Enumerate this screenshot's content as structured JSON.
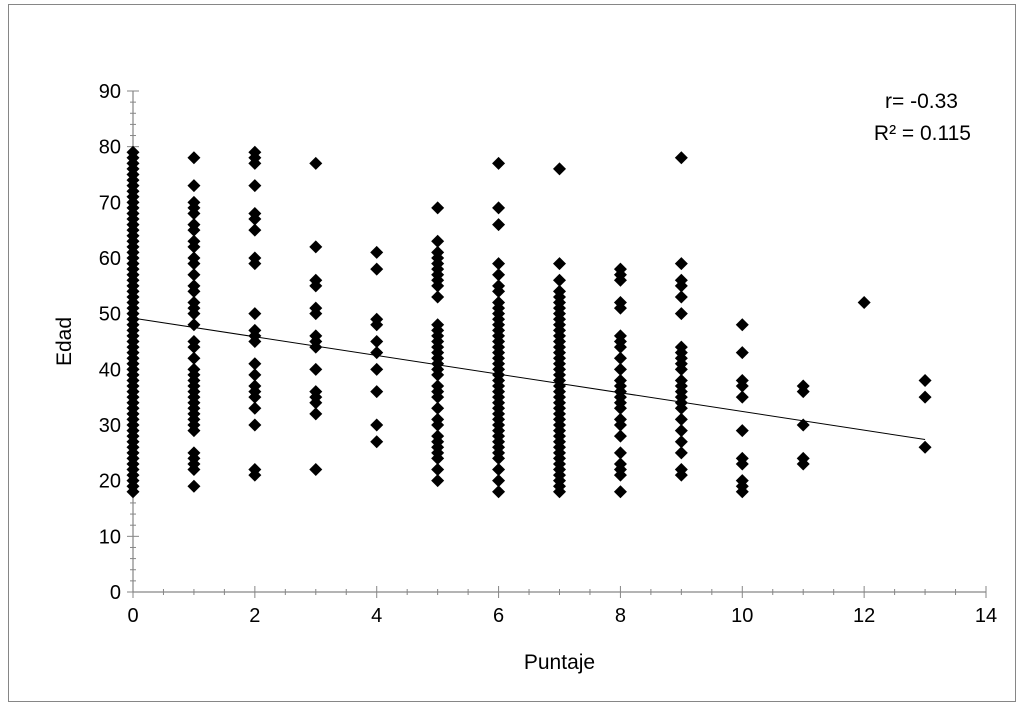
{
  "chart_data": {
    "type": "scatter",
    "title": "",
    "xlabel": "Puntaje",
    "ylabel": "Edad",
    "xlim": [
      0,
      14
    ],
    "ylim": [
      0,
      90
    ],
    "x_ticks": [
      0,
      2,
      4,
      6,
      8,
      10,
      12,
      14
    ],
    "y_ticks": [
      0,
      10,
      20,
      30,
      40,
      50,
      60,
      70,
      80,
      90
    ],
    "grid": false,
    "legend": "none",
    "marker": "diamond",
    "marker_color": "#000000",
    "annotations": [
      "r= -0.33",
      "R² = 0.115"
    ],
    "trendline": {
      "type": "linear",
      "x": [
        0,
        13
      ],
      "y": [
        49.2,
        27.4
      ],
      "color": "#000000"
    },
    "series": [
      {
        "points": [
          [
            0,
            18
          ],
          [
            0,
            19
          ],
          [
            0,
            20
          ],
          [
            0,
            21
          ],
          [
            0,
            22
          ],
          [
            0,
            23
          ],
          [
            0,
            24
          ],
          [
            0,
            25
          ],
          [
            0,
            26
          ],
          [
            0,
            27
          ],
          [
            0,
            28
          ],
          [
            0,
            29
          ],
          [
            0,
            30
          ],
          [
            0,
            31
          ],
          [
            0,
            32
          ],
          [
            0,
            33
          ],
          [
            0,
            34
          ],
          [
            0,
            35
          ],
          [
            0,
            36
          ],
          [
            0,
            37
          ],
          [
            0,
            38
          ],
          [
            0,
            39
          ],
          [
            0,
            40
          ],
          [
            0,
            41
          ],
          [
            0,
            42
          ],
          [
            0,
            43
          ],
          [
            0,
            44
          ],
          [
            0,
            45
          ],
          [
            0,
            46
          ],
          [
            0,
            47
          ],
          [
            0,
            48
          ],
          [
            0,
            49
          ],
          [
            0,
            50
          ],
          [
            0,
            51
          ],
          [
            0,
            52
          ],
          [
            0,
            53
          ],
          [
            0,
            54
          ],
          [
            0,
            55
          ],
          [
            0,
            56
          ],
          [
            0,
            57
          ],
          [
            0,
            58
          ],
          [
            0,
            59
          ],
          [
            0,
            60
          ],
          [
            0,
            61
          ],
          [
            0,
            62
          ],
          [
            0,
            63
          ],
          [
            0,
            64
          ],
          [
            0,
            65
          ],
          [
            0,
            66
          ],
          [
            0,
            67
          ],
          [
            0,
            68
          ],
          [
            0,
            69
          ],
          [
            0,
            70
          ],
          [
            0,
            71
          ],
          [
            0,
            72
          ],
          [
            0,
            73
          ],
          [
            0,
            74
          ],
          [
            0,
            75
          ],
          [
            0,
            76
          ],
          [
            0,
            77
          ],
          [
            0,
            78
          ],
          [
            0,
            79
          ],
          [
            1,
            19
          ],
          [
            1,
            22
          ],
          [
            1,
            23
          ],
          [
            1,
            24
          ],
          [
            1,
            25
          ],
          [
            1,
            29
          ],
          [
            1,
            30
          ],
          [
            1,
            31
          ],
          [
            1,
            32
          ],
          [
            1,
            33
          ],
          [
            1,
            34
          ],
          [
            1,
            35
          ],
          [
            1,
            36
          ],
          [
            1,
            37
          ],
          [
            1,
            38
          ],
          [
            1,
            39
          ],
          [
            1,
            40
          ],
          [
            1,
            42
          ],
          [
            1,
            44
          ],
          [
            1,
            45
          ],
          [
            1,
            48
          ],
          [
            1,
            50
          ],
          [
            1,
            51
          ],
          [
            1,
            52
          ],
          [
            1,
            54
          ],
          [
            1,
            55
          ],
          [
            1,
            57
          ],
          [
            1,
            59
          ],
          [
            1,
            60
          ],
          [
            1,
            62
          ],
          [
            1,
            63
          ],
          [
            1,
            65
          ],
          [
            1,
            66
          ],
          [
            1,
            68
          ],
          [
            1,
            69
          ],
          [
            1,
            70
          ],
          [
            1,
            73
          ],
          [
            1,
            78
          ],
          [
            2,
            21
          ],
          [
            2,
            22
          ],
          [
            2,
            30
          ],
          [
            2,
            33
          ],
          [
            2,
            35
          ],
          [
            2,
            36
          ],
          [
            2,
            37
          ],
          [
            2,
            39
          ],
          [
            2,
            41
          ],
          [
            2,
            45
          ],
          [
            2,
            46
          ],
          [
            2,
            47
          ],
          [
            2,
            50
          ],
          [
            2,
            59
          ],
          [
            2,
            60
          ],
          [
            2,
            65
          ],
          [
            2,
            67
          ],
          [
            2,
            68
          ],
          [
            2,
            73
          ],
          [
            2,
            77
          ],
          [
            2,
            78
          ],
          [
            2,
            79
          ],
          [
            3,
            22
          ],
          [
            3,
            32
          ],
          [
            3,
            34
          ],
          [
            3,
            35
          ],
          [
            3,
            36
          ],
          [
            3,
            40
          ],
          [
            3,
            44
          ],
          [
            3,
            45
          ],
          [
            3,
            46
          ],
          [
            3,
            50
          ],
          [
            3,
            51
          ],
          [
            3,
            55
          ],
          [
            3,
            56
          ],
          [
            3,
            62
          ],
          [
            3,
            77
          ],
          [
            4,
            27
          ],
          [
            4,
            30
          ],
          [
            4,
            36
          ],
          [
            4,
            40
          ],
          [
            4,
            43
          ],
          [
            4,
            45
          ],
          [
            4,
            48
          ],
          [
            4,
            49
          ],
          [
            4,
            58
          ],
          [
            4,
            61
          ],
          [
            5,
            20
          ],
          [
            5,
            22
          ],
          [
            5,
            24
          ],
          [
            5,
            25
          ],
          [
            5,
            26
          ],
          [
            5,
            27
          ],
          [
            5,
            28
          ],
          [
            5,
            30
          ],
          [
            5,
            31
          ],
          [
            5,
            33
          ],
          [
            5,
            35
          ],
          [
            5,
            36
          ],
          [
            5,
            37
          ],
          [
            5,
            39
          ],
          [
            5,
            40
          ],
          [
            5,
            41
          ],
          [
            5,
            42
          ],
          [
            5,
            43
          ],
          [
            5,
            44
          ],
          [
            5,
            45
          ],
          [
            5,
            46
          ],
          [
            5,
            47
          ],
          [
            5,
            48
          ],
          [
            5,
            53
          ],
          [
            5,
            55
          ],
          [
            5,
            56
          ],
          [
            5,
            57
          ],
          [
            5,
            58
          ],
          [
            5,
            59
          ],
          [
            5,
            60
          ],
          [
            5,
            61
          ],
          [
            5,
            63
          ],
          [
            5,
            69
          ],
          [
            6,
            18
          ],
          [
            6,
            20
          ],
          [
            6,
            22
          ],
          [
            6,
            24
          ],
          [
            6,
            25
          ],
          [
            6,
            26
          ],
          [
            6,
            27
          ],
          [
            6,
            28
          ],
          [
            6,
            29
          ],
          [
            6,
            30
          ],
          [
            6,
            31
          ],
          [
            6,
            32
          ],
          [
            6,
            33
          ],
          [
            6,
            34
          ],
          [
            6,
            35
          ],
          [
            6,
            36
          ],
          [
            6,
            37
          ],
          [
            6,
            38
          ],
          [
            6,
            39
          ],
          [
            6,
            40
          ],
          [
            6,
            41
          ],
          [
            6,
            42
          ],
          [
            6,
            43
          ],
          [
            6,
            44
          ],
          [
            6,
            45
          ],
          [
            6,
            46
          ],
          [
            6,
            47
          ],
          [
            6,
            48
          ],
          [
            6,
            49
          ],
          [
            6,
            50
          ],
          [
            6,
            51
          ],
          [
            6,
            52
          ],
          [
            6,
            54
          ],
          [
            6,
            55
          ],
          [
            6,
            57
          ],
          [
            6,
            59
          ],
          [
            6,
            66
          ],
          [
            6,
            69
          ],
          [
            6,
            77
          ],
          [
            7,
            18
          ],
          [
            7,
            19
          ],
          [
            7,
            20
          ],
          [
            7,
            21
          ],
          [
            7,
            22
          ],
          [
            7,
            23
          ],
          [
            7,
            24
          ],
          [
            7,
            25
          ],
          [
            7,
            26
          ],
          [
            7,
            27
          ],
          [
            7,
            28
          ],
          [
            7,
            29
          ],
          [
            7,
            30
          ],
          [
            7,
            31
          ],
          [
            7,
            32
          ],
          [
            7,
            33
          ],
          [
            7,
            34
          ],
          [
            7,
            35
          ],
          [
            7,
            36
          ],
          [
            7,
            37
          ],
          [
            7,
            38
          ],
          [
            7,
            39
          ],
          [
            7,
            40
          ],
          [
            7,
            41
          ],
          [
            7,
            42
          ],
          [
            7,
            43
          ],
          [
            7,
            44
          ],
          [
            7,
            45
          ],
          [
            7,
            46
          ],
          [
            7,
            47
          ],
          [
            7,
            48
          ],
          [
            7,
            49
          ],
          [
            7,
            50
          ],
          [
            7,
            51
          ],
          [
            7,
            52
          ],
          [
            7,
            53
          ],
          [
            7,
            54
          ],
          [
            7,
            56
          ],
          [
            7,
            59
          ],
          [
            7,
            76
          ],
          [
            8,
            18
          ],
          [
            8,
            21
          ],
          [
            8,
            22
          ],
          [
            8,
            23
          ],
          [
            8,
            25
          ],
          [
            8,
            28
          ],
          [
            8,
            30
          ],
          [
            8,
            31
          ],
          [
            8,
            33
          ],
          [
            8,
            34
          ],
          [
            8,
            35
          ],
          [
            8,
            36
          ],
          [
            8,
            37
          ],
          [
            8,
            38
          ],
          [
            8,
            40
          ],
          [
            8,
            42
          ],
          [
            8,
            44
          ],
          [
            8,
            45
          ],
          [
            8,
            46
          ],
          [
            8,
            51
          ],
          [
            8,
            52
          ],
          [
            8,
            56
          ],
          [
            8,
            57
          ],
          [
            8,
            58
          ],
          [
            9,
            21
          ],
          [
            9,
            22
          ],
          [
            9,
            25
          ],
          [
            9,
            27
          ],
          [
            9,
            29
          ],
          [
            9,
            31
          ],
          [
            9,
            33
          ],
          [
            9,
            34
          ],
          [
            9,
            35
          ],
          [
            9,
            36
          ],
          [
            9,
            37
          ],
          [
            9,
            38
          ],
          [
            9,
            40
          ],
          [
            9,
            41
          ],
          [
            9,
            42
          ],
          [
            9,
            43
          ],
          [
            9,
            44
          ],
          [
            9,
            50
          ],
          [
            9,
            53
          ],
          [
            9,
            55
          ],
          [
            9,
            56
          ],
          [
            9,
            59
          ],
          [
            9,
            78
          ],
          [
            10,
            18
          ],
          [
            10,
            19
          ],
          [
            10,
            20
          ],
          [
            10,
            23
          ],
          [
            10,
            24
          ],
          [
            10,
            29
          ],
          [
            10,
            35
          ],
          [
            10,
            37
          ],
          [
            10,
            38
          ],
          [
            10,
            43
          ],
          [
            10,
            48
          ],
          [
            11,
            23
          ],
          [
            11,
            24
          ],
          [
            11,
            30
          ],
          [
            11,
            36
          ],
          [
            11,
            37
          ],
          [
            12,
            52
          ],
          [
            13,
            26
          ],
          [
            13,
            35
          ],
          [
            13,
            38
          ]
        ]
      }
    ]
  }
}
